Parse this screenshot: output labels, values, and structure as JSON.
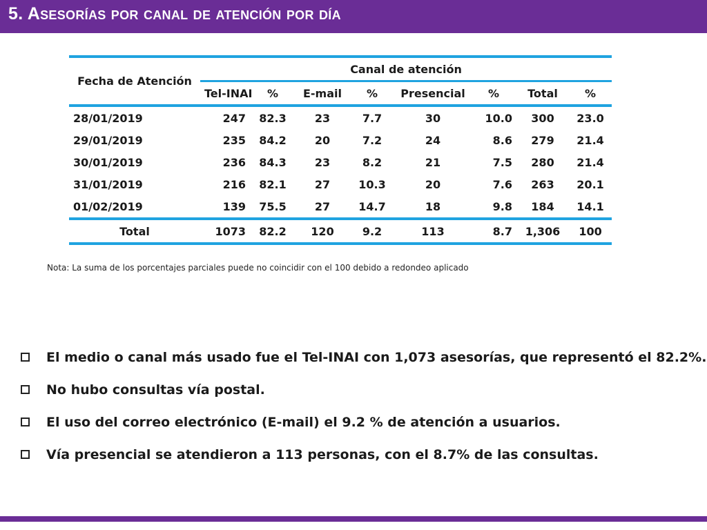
{
  "slide": {
    "title": "5. Asesorías por canal de atención por día"
  },
  "table": {
    "date_header": "Fecha de Atención",
    "group_header": "Canal de atención",
    "columns": [
      "Tel-INAI",
      "%",
      "E-mail",
      "%",
      "Presencial",
      "%",
      "Total",
      "%"
    ],
    "rows": [
      {
        "date": "28/01/2019",
        "values": [
          "247",
          "82.3",
          "23",
          "7.7",
          "30",
          "10.0",
          "300",
          "23.0"
        ]
      },
      {
        "date": "29/01/2019",
        "values": [
          "235",
          "84.2",
          "20",
          "7.2",
          "24",
          "8.6",
          "279",
          "21.4"
        ]
      },
      {
        "date": "30/01/2019",
        "values": [
          "236",
          "84.3",
          "23",
          "8.2",
          "21",
          "7.5",
          "280",
          "21.4"
        ]
      },
      {
        "date": "31/01/2019",
        "values": [
          "216",
          "82.1",
          "27",
          "10.3",
          "20",
          "7.6",
          "263",
          "20.1"
        ]
      },
      {
        "date": "01/02/2019",
        "values": [
          "139",
          "75.5",
          "27",
          "14.7",
          "18",
          "9.8",
          "184",
          "14.1"
        ]
      }
    ],
    "total": {
      "label": "Total",
      "values": [
        "1073",
        "82.2",
        "120",
        "9.2",
        "113",
        "8.7",
        "1,306",
        "100"
      ]
    }
  },
  "note": "Nota: La suma de los porcentajes parciales puede no coincidir con el 100 debido a redondeo aplicado",
  "bullets": [
    "El medio o canal más usado fue el Tel-INAI con 1,073 asesorías, que representó el 82.2%.",
    "No hubo consultas vía postal.",
    "El uso del correo electrónico (E-mail) el 9.2 % de atención a usuarios.",
    "Vía presencial se atendieron a 113 personas, con el 8.7% de las consultas."
  ],
  "colors": {
    "accent": "#6a2d96",
    "rule": "#1fa3e0"
  }
}
